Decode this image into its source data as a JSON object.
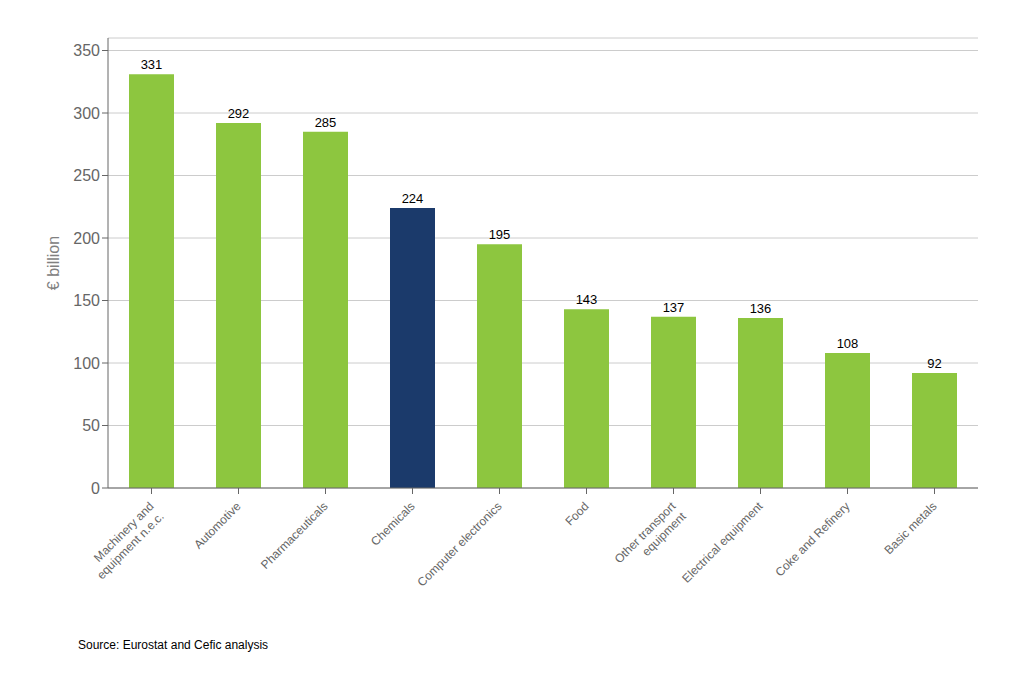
{
  "chart_data": {
    "type": "bar",
    "categories": [
      "Machinery and\nequipment n.e.c.",
      "Automotive",
      "Pharmaceuticals",
      "Chemicals",
      "Computer electronics",
      "Food",
      "Other transport\nequipment",
      "Electrical equipment",
      "Coke and Refinery",
      "Basic metals"
    ],
    "values": [
      331,
      292,
      285,
      224,
      195,
      143,
      137,
      136,
      108,
      92
    ],
    "colors": [
      "#8DC63F",
      "#8DC63F",
      "#8DC63F",
      "#1B3A6B",
      "#8DC63F",
      "#8DC63F",
      "#8DC63F",
      "#8DC63F",
      "#8DC63F",
      "#8DC63F"
    ],
    "ylabel": "€ billion",
    "ylim": [
      0,
      360
    ],
    "yticks": [
      0,
      50,
      100,
      150,
      200,
      250,
      300,
      350
    ],
    "grid": true,
    "data_labels": true,
    "annotations": [
      "Source: Eurostat and Cefic analysis"
    ]
  }
}
